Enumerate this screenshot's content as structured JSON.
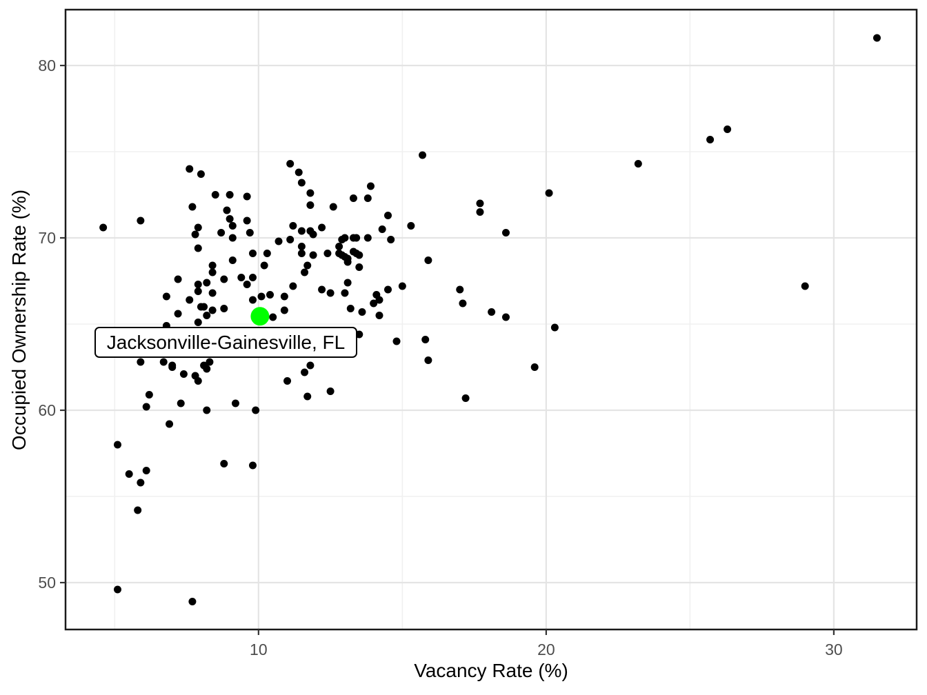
{
  "chart_data": {
    "type": "scatter",
    "title": "",
    "xlabel": "Vacancy Rate (%)",
    "ylabel": "Occupied Ownership Rate (%)",
    "xlim": [
      3.29,
      32.88
    ],
    "ylim": [
      47.28,
      83.24
    ],
    "x_major_ticks": [
      10,
      20,
      30
    ],
    "y_major_ticks": [
      50,
      60,
      70,
      80
    ],
    "x_minor_gridlines": [
      5,
      15,
      25
    ],
    "y_minor_gridlines": [
      55,
      65,
      75
    ],
    "grid": "on",
    "legend": "none",
    "colors": {
      "point": "#000000",
      "highlight": "#00FF00",
      "grid_major": "#e4e4e4",
      "grid_minor": "#f0f0f0",
      "panel_border": "#1a1a1a",
      "tick_mark": "#333333",
      "tick_text": "#4d4d4d"
    },
    "series": [
      {
        "name": "metro-areas",
        "marker_radius": 5.5,
        "points": [
          [
            7.6,
            74.0
          ],
          [
            8.0,
            73.7
          ],
          [
            8.5,
            72.5
          ],
          [
            9.0,
            72.5
          ],
          [
            9.6,
            72.4
          ],
          [
            7.7,
            71.8
          ],
          [
            8.9,
            71.6
          ],
          [
            15.7,
            74.8
          ],
          [
            11.1,
            74.3
          ],
          [
            11.4,
            73.8
          ],
          [
            11.5,
            73.2
          ],
          [
            11.8,
            72.6
          ],
          [
            11.8,
            71.9
          ],
          [
            12.6,
            71.8
          ],
          [
            13.3,
            72.3
          ],
          [
            13.9,
            73.0
          ],
          [
            13.8,
            72.3
          ],
          [
            14.5,
            71.3
          ],
          [
            17.7,
            72.0
          ],
          [
            17.7,
            71.5
          ],
          [
            23.2,
            74.3
          ],
          [
            20.1,
            72.6
          ],
          [
            31.5,
            81.6
          ],
          [
            26.3,
            76.3
          ],
          [
            25.7,
            75.7
          ],
          [
            4.6,
            70.6
          ],
          [
            5.9,
            71.0
          ],
          [
            7.9,
            70.6
          ],
          [
            7.8,
            70.2
          ],
          [
            8.7,
            70.3
          ],
          [
            9.0,
            71.1
          ],
          [
            9.1,
            70.7
          ],
          [
            9.1,
            70.0
          ],
          [
            9.6,
            71.0
          ],
          [
            9.7,
            70.3
          ],
          [
            7.9,
            69.4
          ],
          [
            9.8,
            69.1
          ],
          [
            10.3,
            69.1
          ],
          [
            10.2,
            68.4
          ],
          [
            9.1,
            68.7
          ],
          [
            8.4,
            68.4
          ],
          [
            8.4,
            68.0
          ],
          [
            7.2,
            67.6
          ],
          [
            8.2,
            67.4
          ],
          [
            8.8,
            67.6
          ],
          [
            9.4,
            67.7
          ],
          [
            9.8,
            67.7
          ],
          [
            9.6,
            67.3
          ],
          [
            7.9,
            67.3
          ],
          [
            7.9,
            66.9
          ],
          [
            6.8,
            66.6
          ],
          [
            8.4,
            66.8
          ],
          [
            7.6,
            66.4
          ],
          [
            8.0,
            66.0
          ],
          [
            8.1,
            66.0
          ],
          [
            8.2,
            65.5
          ],
          [
            8.4,
            65.8
          ],
          [
            8.8,
            65.9
          ],
          [
            7.2,
            65.6
          ],
          [
            7.9,
            65.1
          ],
          [
            9.8,
            66.4
          ],
          [
            10.1,
            66.6
          ],
          [
            10.4,
            66.7
          ],
          [
            10.5,
            65.4
          ],
          [
            6.8,
            64.9
          ],
          [
            8.3,
            62.8
          ],
          [
            8.1,
            62.6
          ],
          [
            8.2,
            62.4
          ],
          [
            5.9,
            62.8
          ],
          [
            6.7,
            62.8
          ],
          [
            7.0,
            62.6
          ],
          [
            7.0,
            62.5
          ],
          [
            7.4,
            62.1
          ],
          [
            7.8,
            62.0
          ],
          [
            7.9,
            61.7
          ],
          [
            6.2,
            60.9
          ],
          [
            6.1,
            60.2
          ],
          [
            7.3,
            60.4
          ],
          [
            8.2,
            60.0
          ],
          [
            9.2,
            60.4
          ],
          [
            9.9,
            60.0
          ],
          [
            6.9,
            59.2
          ],
          [
            11.2,
            70.7
          ],
          [
            11.5,
            70.4
          ],
          [
            11.8,
            70.4
          ],
          [
            11.9,
            70.2
          ],
          [
            12.2,
            70.6
          ],
          [
            15.3,
            70.7
          ],
          [
            14.3,
            70.5
          ],
          [
            14.6,
            69.9
          ],
          [
            11.1,
            69.9
          ],
          [
            10.7,
            69.8
          ],
          [
            12.9,
            69.9
          ],
          [
            13.0,
            70.0
          ],
          [
            13.3,
            70.0
          ],
          [
            13.4,
            70.0
          ],
          [
            13.8,
            70.0
          ],
          [
            11.5,
            69.5
          ],
          [
            11.5,
            69.1
          ],
          [
            11.9,
            69.0
          ],
          [
            12.4,
            69.1
          ],
          [
            12.8,
            69.5
          ],
          [
            12.8,
            69.1
          ],
          [
            12.9,
            69.0
          ],
          [
            13.0,
            68.9
          ],
          [
            13.1,
            68.8
          ],
          [
            13.1,
            68.6
          ],
          [
            13.3,
            69.2
          ],
          [
            13.4,
            69.1
          ],
          [
            13.5,
            69.0
          ],
          [
            13.5,
            68.3
          ],
          [
            11.7,
            68.4
          ],
          [
            11.6,
            68.0
          ],
          [
            15.9,
            68.7
          ],
          [
            13.1,
            67.4
          ],
          [
            15.0,
            67.2
          ],
          [
            11.2,
            67.2
          ],
          [
            12.2,
            67.0
          ],
          [
            12.5,
            66.8
          ],
          [
            13.0,
            66.8
          ],
          [
            14.5,
            67.0
          ],
          [
            10.9,
            66.6
          ],
          [
            14.1,
            66.7
          ],
          [
            14.2,
            66.4
          ],
          [
            14.0,
            66.2
          ],
          [
            13.2,
            65.9
          ],
          [
            13.6,
            65.7
          ],
          [
            10.9,
            65.8
          ],
          [
            14.2,
            65.5
          ],
          [
            18.1,
            65.7
          ],
          [
            17.0,
            67.0
          ],
          [
            17.1,
            66.2
          ],
          [
            13.5,
            64.4
          ],
          [
            14.8,
            64.0
          ],
          [
            15.8,
            64.1
          ],
          [
            15.9,
            62.9
          ],
          [
            11.8,
            62.6
          ],
          [
            11.6,
            62.2
          ],
          [
            11.0,
            61.7
          ],
          [
            11.7,
            60.8
          ],
          [
            12.5,
            61.1
          ],
          [
            17.2,
            60.7
          ],
          [
            18.6,
            70.3
          ],
          [
            18.6,
            65.4
          ],
          [
            20.3,
            64.8
          ],
          [
            19.6,
            62.5
          ],
          [
            29.0,
            67.2
          ],
          [
            5.1,
            58.0
          ],
          [
            8.8,
            56.9
          ],
          [
            9.8,
            56.8
          ],
          [
            5.5,
            56.3
          ],
          [
            6.1,
            56.5
          ],
          [
            5.9,
            55.8
          ],
          [
            5.8,
            54.2
          ],
          [
            5.1,
            49.6
          ],
          [
            7.7,
            48.9
          ]
        ]
      },
      {
        "name": "highlighted-metro",
        "marker_radius": 13.5,
        "points": [
          [
            10.05,
            65.45
          ]
        ]
      }
    ],
    "annotation": {
      "text": "Jacksonville-Gainesville, FL",
      "x": 10.05,
      "y": 65.45
    }
  }
}
